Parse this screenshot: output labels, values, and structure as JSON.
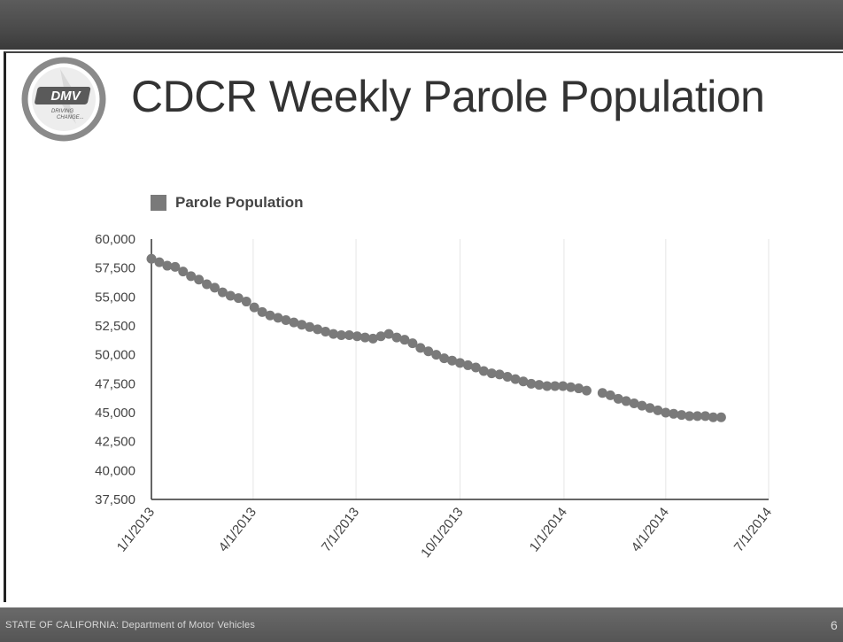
{
  "slide": {
    "title": "CDCR Weekly Parole Population",
    "footer": "STATE OF CALIFORNIA: Department of Motor Vehicles",
    "page_number": "6",
    "logo": {
      "text": "DMV",
      "tagline_1": "DRIVING",
      "tagline_2": "CHANGE..."
    }
  },
  "colors": {
    "series": "#7a7a7a",
    "grid": "#e6e6e6",
    "axis": "#333333",
    "tick_text": "#444444"
  },
  "chart_data": {
    "type": "scatter",
    "title": "",
    "xlabel": "",
    "ylabel": "",
    "legend": {
      "position": "top-left",
      "entries": [
        "Parole Population"
      ]
    },
    "grid": true,
    "x_tick_labels": [
      "1/1/2013",
      "4/1/2013",
      "7/1/2013",
      "10/1/2013",
      "1/1/2014",
      "4/1/2014",
      "7/1/2014"
    ],
    "y_tick_labels": [
      "37,500",
      "40,000",
      "42,500",
      "45,000",
      "47,500",
      "50,000",
      "52,500",
      "55,000",
      "57,500",
      "60,000"
    ],
    "xlim": [
      "2013-01-01",
      "2014-07-01"
    ],
    "ylim": [
      37500,
      60000
    ],
    "series": [
      {
        "name": "Parole Population",
        "x": [
          "2013-01-01",
          "2013-01-08",
          "2013-01-15",
          "2013-01-22",
          "2013-01-29",
          "2013-02-05",
          "2013-02-12",
          "2013-02-19",
          "2013-02-26",
          "2013-03-05",
          "2013-03-12",
          "2013-03-19",
          "2013-03-26",
          "2013-04-02",
          "2013-04-09",
          "2013-04-16",
          "2013-04-23",
          "2013-04-30",
          "2013-05-07",
          "2013-05-14",
          "2013-05-21",
          "2013-05-28",
          "2013-06-04",
          "2013-06-11",
          "2013-06-18",
          "2013-06-25",
          "2013-07-02",
          "2013-07-09",
          "2013-07-16",
          "2013-07-23",
          "2013-07-30",
          "2013-08-06",
          "2013-08-13",
          "2013-08-20",
          "2013-08-27",
          "2013-09-03",
          "2013-09-10",
          "2013-09-17",
          "2013-09-24",
          "2013-10-01",
          "2013-10-08",
          "2013-10-15",
          "2013-10-22",
          "2013-10-29",
          "2013-11-05",
          "2013-11-12",
          "2013-11-19",
          "2013-11-26",
          "2013-12-03",
          "2013-12-10",
          "2013-12-17",
          "2013-12-24",
          "2013-12-31",
          "2014-01-07",
          "2014-01-14",
          "2014-01-21",
          "2014-02-04",
          "2014-02-11",
          "2014-02-18",
          "2014-02-25",
          "2014-03-04",
          "2014-03-11",
          "2014-03-18",
          "2014-03-25",
          "2014-04-01",
          "2014-04-08",
          "2014-04-15",
          "2014-04-22",
          "2014-04-29",
          "2014-05-06",
          "2014-05-13",
          "2014-05-20"
        ],
        "values": [
          58300,
          58000,
          57700,
          57600,
          57200,
          56800,
          56500,
          56100,
          55800,
          55400,
          55100,
          54900,
          54600,
          54100,
          53700,
          53400,
          53200,
          53000,
          52800,
          52600,
          52400,
          52200,
          52000,
          51800,
          51700,
          51700,
          51600,
          51500,
          51400,
          51600,
          51800,
          51500,
          51300,
          51000,
          50600,
          50300,
          50000,
          49700,
          49500,
          49300,
          49100,
          48900,
          48600,
          48400,
          48300,
          48100,
          47900,
          47700,
          47500,
          47400,
          47300,
          47300,
          47300,
          47200,
          47100,
          46900,
          46700,
          46500,
          46200,
          46000,
          45800,
          45600,
          45400,
          45200,
          45000,
          44900,
          44800,
          44700,
          44700,
          44700,
          44600,
          44600
        ]
      }
    ]
  }
}
